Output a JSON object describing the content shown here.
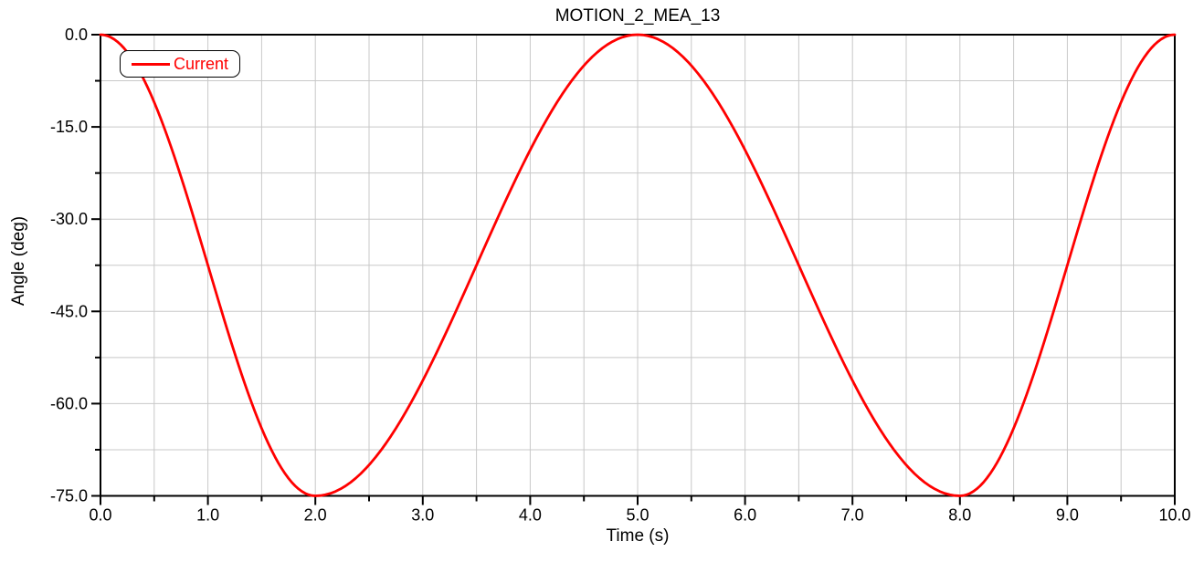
{
  "window": {
    "background": "#ffffff"
  },
  "chart_data": {
    "type": "line",
    "title": "MOTION_2_MEA_13",
    "xlabel": "Time (s)",
    "ylabel": "Angle (deg)",
    "xlim": [
      0.0,
      10.0
    ],
    "ylim": [
      -75.0,
      0.0
    ],
    "x_major_step": 1.0,
    "x_minor_step": 0.5,
    "y_major_step": 15.0,
    "y_minor_step": 7.5,
    "x_tick_labels": [
      "0.0",
      "1.0",
      "2.0",
      "3.0",
      "4.0",
      "5.0",
      "6.0",
      "7.0",
      "8.0",
      "9.0",
      "10.0"
    ],
    "y_tick_labels": [
      "0.0",
      "-15.0",
      "-30.0",
      "-45.0",
      "-60.0",
      "-75.0"
    ],
    "grid": "minor-and-major",
    "legend_position": "top-left",
    "series": [
      {
        "name": "Current",
        "color": "#ff0000",
        "line_width": 2.8,
        "keypoints": [
          [
            0.0,
            0.0
          ],
          [
            2.0,
            -75.0
          ],
          [
            5.0,
            0.0
          ],
          [
            8.0,
            -75.0
          ],
          [
            10.0,
            0.0
          ]
        ],
        "segments": [
          {
            "t_start": 0.0,
            "t_end": 2.0,
            "v_start": 0.0,
            "v_end": -75.0,
            "shape": "half-cosine"
          },
          {
            "t_start": 2.0,
            "t_end": 5.0,
            "v_start": -75.0,
            "v_end": 0.0,
            "shape": "half-cosine"
          },
          {
            "t_start": 5.0,
            "t_end": 8.0,
            "v_start": 0.0,
            "v_end": -75.0,
            "shape": "half-cosine"
          },
          {
            "t_start": 8.0,
            "t_end": 10.0,
            "v_start": -75.0,
            "v_end": 0.0,
            "shape": "half-cosine"
          }
        ],
        "sampled_points": [
          [
            0.0,
            0.0
          ],
          [
            0.5,
            -10.98
          ],
          [
            1.0,
            -37.5
          ],
          [
            1.5,
            -64.02
          ],
          [
            2.0,
            -75.0
          ],
          [
            2.5,
            -69.98
          ],
          [
            3.0,
            -56.25
          ],
          [
            3.5,
            -37.5
          ],
          [
            4.0,
            -18.75
          ],
          [
            4.5,
            -5.02
          ],
          [
            5.0,
            0.0
          ],
          [
            5.5,
            -5.02
          ],
          [
            6.0,
            -18.75
          ],
          [
            6.5,
            -37.5
          ],
          [
            7.0,
            -56.25
          ],
          [
            7.5,
            -69.98
          ],
          [
            8.0,
            -75.0
          ],
          [
            8.5,
            -64.02
          ],
          [
            9.0,
            -37.5
          ],
          [
            9.5,
            -10.98
          ],
          [
            10.0,
            0.0
          ]
        ]
      }
    ],
    "colors": {
      "grid": "#c8c8c8",
      "axis": "#000000",
      "text": "#000000",
      "plot_background": "#ffffff"
    }
  }
}
